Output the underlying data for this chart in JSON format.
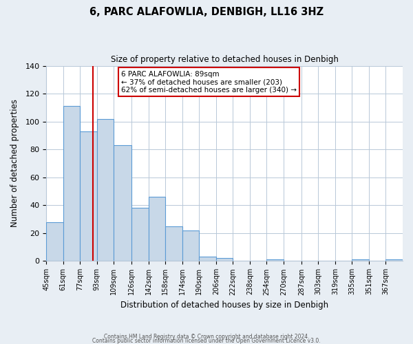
{
  "title": "6, PARC ALAFOWLIA, DENBIGH, LL16 3HZ",
  "subtitle": "Size of property relative to detached houses in Denbigh",
  "xlabel": "Distribution of detached houses by size in Denbigh",
  "ylabel": "Number of detached properties",
  "bin_labels": [
    "45sqm",
    "61sqm",
    "77sqm",
    "93sqm",
    "109sqm",
    "126sqm",
    "142sqm",
    "158sqm",
    "174sqm",
    "190sqm",
    "206sqm",
    "222sqm",
    "238sqm",
    "254sqm",
    "270sqm",
    "287sqm",
    "303sqm",
    "319sqm",
    "335sqm",
    "351sqm",
    "367sqm"
  ],
  "bin_starts": [
    45,
    61,
    77,
    93,
    109,
    126,
    142,
    158,
    174,
    190,
    206,
    222,
    238,
    254,
    270,
    287,
    303,
    319,
    335,
    351,
    367
  ],
  "bar_values": [
    28,
    111,
    93,
    102,
    83,
    38,
    46,
    25,
    22,
    3,
    2,
    0,
    0,
    1,
    0,
    0,
    0,
    0,
    1,
    0,
    1
  ],
  "bar_color": "#c8d8e8",
  "bar_edge_color": "#5b9bd5",
  "vline_x": 89,
  "vline_color": "#cc0000",
  "ylim": [
    0,
    140
  ],
  "yticks": [
    0,
    20,
    40,
    60,
    80,
    100,
    120,
    140
  ],
  "annotation_title": "6 PARC ALAFOWLIA: 89sqm",
  "annotation_line1": "← 37% of detached houses are smaller (203)",
  "annotation_line2": "62% of semi-detached houses are larger (340) →",
  "annotation_box_color": "#ffffff",
  "annotation_box_edge": "#cc0000",
  "footer_line1": "Contains HM Land Registry data © Crown copyright and database right 2024.",
  "footer_line2": "Contains public sector information licensed under the Open Government Licence v3.0.",
  "background_color": "#e8eef4",
  "plot_background": "#ffffff",
  "grid_color": "#b8c8d8"
}
